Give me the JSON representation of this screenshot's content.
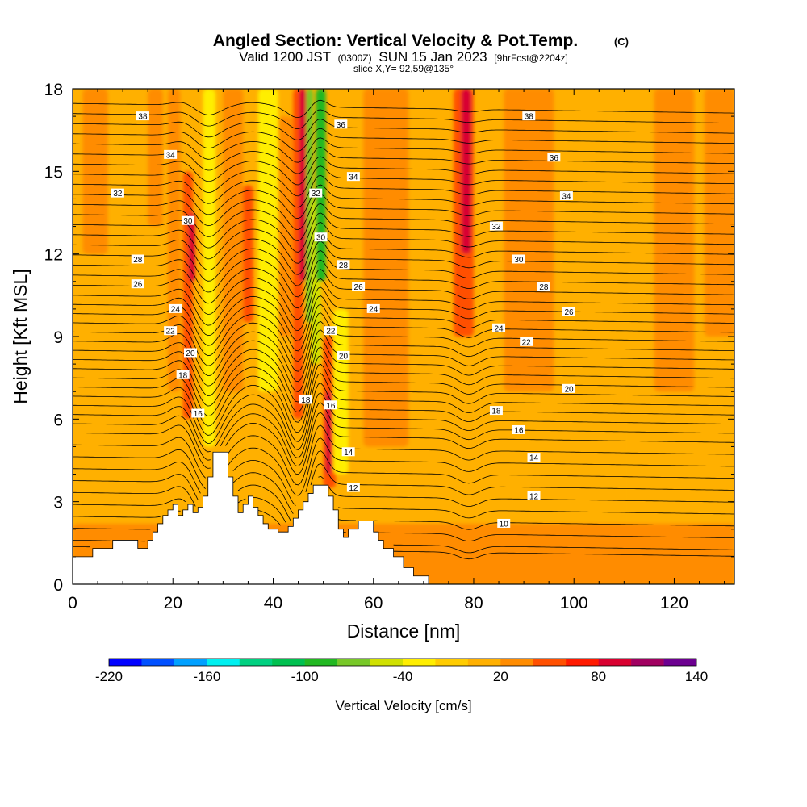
{
  "chart_data": {
    "type": "heatmap",
    "title": "Angled Section: Vertical Velocity & Pot.Temp.",
    "title_units": "(C)",
    "subtitle": {
      "valid": "Valid 1200 JST",
      "utc": "(0300Z)",
      "date": "SUN 15 Jan 2023",
      "forecast": "[9hrFcst@2204z]"
    },
    "slice_info": "slice X,Y= 92,59@135°",
    "xlabel": "Distance [nm]",
    "ylabel": "Height [Kft MSL]",
    "xlim": [
      0,
      132
    ],
    "ylim": [
      0,
      18
    ],
    "x_ticks": [
      0,
      20,
      40,
      60,
      80,
      100,
      120
    ],
    "y_ticks": [
      0,
      3,
      6,
      9,
      12,
      15,
      18
    ],
    "terrain": [
      [
        0,
        1.0
      ],
      [
        4,
        1.0
      ],
      [
        4,
        1.3
      ],
      [
        8,
        1.3
      ],
      [
        8,
        1.6
      ],
      [
        13,
        1.6
      ],
      [
        13,
        1.3
      ],
      [
        15,
        1.3
      ],
      [
        15,
        1.6
      ],
      [
        16,
        1.6
      ],
      [
        16,
        1.9
      ],
      [
        17,
        1.9
      ],
      [
        17,
        2.2
      ],
      [
        18,
        2.2
      ],
      [
        18,
        2.5
      ],
      [
        19,
        2.5
      ],
      [
        19,
        2.7
      ],
      [
        20,
        2.7
      ],
      [
        20,
        2.9
      ],
      [
        21,
        2.9
      ],
      [
        21,
        2.5
      ],
      [
        22,
        2.5
      ],
      [
        22,
        2.7
      ],
      [
        23,
        2.7
      ],
      [
        23,
        2.9
      ],
      [
        24,
        2.9
      ],
      [
        24,
        2.6
      ],
      [
        25,
        2.6
      ],
      [
        25,
        2.8
      ],
      [
        26,
        2.8
      ],
      [
        26,
        3.2
      ],
      [
        27,
        3.2
      ],
      [
        27,
        3.9
      ],
      [
        28,
        3.9
      ],
      [
        28,
        4.8
      ],
      [
        31,
        4.8
      ],
      [
        31,
        3.9
      ],
      [
        32,
        3.9
      ],
      [
        32,
        3.2
      ],
      [
        33,
        3.2
      ],
      [
        33,
        2.6
      ],
      [
        34,
        2.6
      ],
      [
        34,
        2.9
      ],
      [
        35,
        2.9
      ],
      [
        35,
        3.2
      ],
      [
        36,
        3.2
      ],
      [
        36,
        2.8
      ],
      [
        37,
        2.8
      ],
      [
        37,
        2.5
      ],
      [
        38,
        2.5
      ],
      [
        38,
        2.2
      ],
      [
        39,
        2.2
      ],
      [
        39,
        2.0
      ],
      [
        41,
        2.0
      ],
      [
        41,
        1.9
      ],
      [
        43,
        1.9
      ],
      [
        43,
        2.1
      ],
      [
        44,
        2.1
      ],
      [
        44,
        2.4
      ],
      [
        45,
        2.4
      ],
      [
        45,
        2.7
      ],
      [
        46,
        2.7
      ],
      [
        46,
        3.0
      ],
      [
        47,
        3.0
      ],
      [
        47,
        3.3
      ],
      [
        48,
        3.3
      ],
      [
        48,
        3.6
      ],
      [
        51,
        3.6
      ],
      [
        51,
        3.2
      ],
      [
        52,
        3.2
      ],
      [
        52,
        2.7
      ],
      [
        53,
        2.7
      ],
      [
        53,
        2.0
      ],
      [
        54,
        2.0
      ],
      [
        54,
        1.7
      ],
      [
        55,
        1.7
      ],
      [
        55,
        2.0
      ],
      [
        57,
        2.0
      ],
      [
        57,
        2.3
      ],
      [
        60,
        2.3
      ],
      [
        60,
        1.9
      ],
      [
        61,
        1.9
      ],
      [
        61,
        1.6
      ],
      [
        62,
        1.6
      ],
      [
        62,
        1.3
      ],
      [
        64,
        1.3
      ],
      [
        64,
        1.0
      ],
      [
        66,
        1.0
      ],
      [
        66,
        0.6
      ],
      [
        68,
        0.6
      ],
      [
        68,
        0.3
      ],
      [
        71,
        0.3
      ],
      [
        71,
        0.0
      ],
      [
        132,
        0.0
      ]
    ],
    "vertical_velocity_zones": [
      {
        "x": [
          2,
          7
        ],
        "y": [
          12,
          18
        ],
        "value": 30
      },
      {
        "x": [
          15,
          18
        ],
        "y": [
          13,
          18
        ],
        "value": 30
      },
      {
        "x": [
          19,
          21.5
        ],
        "y": [
          7,
          18
        ],
        "value": 38
      },
      {
        "x": [
          22,
          24
        ],
        "y": [
          6,
          15
        ],
        "value": 58
      },
      {
        "x": [
          23.2,
          24.4
        ],
        "y": [
          11,
          13.5
        ],
        "value": 82
      },
      {
        "x": [
          26,
          28.5
        ],
        "y": [
          5,
          18
        ],
        "value": -35
      },
      {
        "x": [
          30,
          34
        ],
        "y": [
          7,
          18
        ],
        "value": 30
      },
      {
        "x": [
          34,
          36
        ],
        "y": [
          9.5,
          14.5
        ],
        "value": 55
      },
      {
        "x": [
          37,
          41
        ],
        "y": [
          7,
          18
        ],
        "value": -25
      },
      {
        "x": [
          41,
          44
        ],
        "y": [
          9,
          17
        ],
        "value": 22
      },
      {
        "x": [
          44,
          46
        ],
        "y": [
          6,
          18
        ],
        "value": 55
      },
      {
        "x": [
          45.2,
          46.6
        ],
        "y": [
          11,
          18
        ],
        "value": 82
      },
      {
        "x": [
          46.6,
          48
        ],
        "y": [
          9.5,
          18
        ],
        "value": -75
      },
      {
        "x": [
          47.5,
          49.5
        ],
        "y": [
          8,
          14
        ],
        "value": -55
      },
      {
        "x": [
          48.5,
          50.5
        ],
        "y": [
          11,
          18
        ],
        "value": -95
      },
      {
        "x": [
          50,
          52.5
        ],
        "y": [
          3.5,
          9
        ],
        "value": 55
      },
      {
        "x": [
          50.5,
          51.6
        ],
        "y": [
          4,
          7
        ],
        "value": 80
      },
      {
        "x": [
          52,
          55
        ],
        "y": [
          4,
          10
        ],
        "value": -30
      },
      {
        "x": [
          58,
          67
        ],
        "y": [
          5,
          18
        ],
        "value": 22
      },
      {
        "x": [
          76,
          80
        ],
        "y": [
          9,
          18
        ],
        "value": 50
      },
      {
        "x": [
          77.5,
          79.5
        ],
        "y": [
          12,
          18
        ],
        "value": 82
      },
      {
        "x": [
          86,
          96
        ],
        "y": [
          7,
          18
        ],
        "value": 22
      },
      {
        "x": [
          116,
          124
        ],
        "y": [
          7,
          18
        ],
        "value": 20
      },
      {
        "x": [
          126,
          132
        ],
        "y": [
          9,
          18
        ],
        "value": 22
      },
      {
        "x": [
          104,
          111
        ],
        "y": [
          2,
          8
        ],
        "value": 15
      },
      {
        "x": [
          118,
          128
        ],
        "y": [
          2.5,
          6
        ],
        "value": 12
      },
      {
        "x": [
          0,
          132
        ],
        "y": [
          0,
          2.2
        ],
        "value": 28
      }
    ],
    "pot_temp_contours": {
      "levels": [
        10,
        12,
        14,
        16,
        18,
        20,
        22,
        24,
        26,
        28,
        30,
        32,
        34,
        36,
        38
      ],
      "labels": [
        {
          "text": "38",
          "x": 14,
          "y": 17.0
        },
        {
          "text": "34",
          "x": 19.5,
          "y": 15.6
        },
        {
          "text": "32",
          "x": 9,
          "y": 14.2
        },
        {
          "text": "30",
          "x": 23,
          "y": 13.2
        },
        {
          "text": "28",
          "x": 13,
          "y": 11.8
        },
        {
          "text": "26",
          "x": 13,
          "y": 10.9
        },
        {
          "text": "24",
          "x": 20.5,
          "y": 10.0
        },
        {
          "text": "22",
          "x": 19.5,
          "y": 9.2
        },
        {
          "text": "20",
          "x": 23.5,
          "y": 8.4
        },
        {
          "text": "18",
          "x": 22,
          "y": 7.6
        },
        {
          "text": "16",
          "x": 25,
          "y": 6.2
        },
        {
          "text": "36",
          "x": 53.5,
          "y": 16.7
        },
        {
          "text": "34",
          "x": 56,
          "y": 14.8
        },
        {
          "text": "32",
          "x": 48.5,
          "y": 14.2
        },
        {
          "text": "30",
          "x": 49.5,
          "y": 12.6
        },
        {
          "text": "28",
          "x": 54,
          "y": 11.6
        },
        {
          "text": "26",
          "x": 57,
          "y": 10.8
        },
        {
          "text": "24",
          "x": 60,
          "y": 10.0
        },
        {
          "text": "22",
          "x": 51.5,
          "y": 9.2
        },
        {
          "text": "20",
          "x": 54,
          "y": 8.3
        },
        {
          "text": "18",
          "x": 46.5,
          "y": 6.7
        },
        {
          "text": "16",
          "x": 51.5,
          "y": 6.5
        },
        {
          "text": "14",
          "x": 55,
          "y": 4.8
        },
        {
          "text": "12",
          "x": 56,
          "y": 3.5
        },
        {
          "text": "10",
          "x": 86,
          "y": 2.2
        },
        {
          "text": "12",
          "x": 92,
          "y": 3.2
        },
        {
          "text": "14",
          "x": 92,
          "y": 4.6
        },
        {
          "text": "16",
          "x": 89,
          "y": 5.6
        },
        {
          "text": "18",
          "x": 84.5,
          "y": 6.3
        },
        {
          "text": "20",
          "x": 99,
          "y": 7.1
        },
        {
          "text": "22",
          "x": 90.5,
          "y": 8.8
        },
        {
          "text": "24",
          "x": 85,
          "y": 9.3
        },
        {
          "text": "26",
          "x": 99,
          "y": 9.9
        },
        {
          "text": "28",
          "x": 94,
          "y": 10.8
        },
        {
          "text": "30",
          "x": 89,
          "y": 11.8
        },
        {
          "text": "32",
          "x": 84.5,
          "y": 13.0
        },
        {
          "text": "34",
          "x": 98.5,
          "y": 14.1
        },
        {
          "text": "36",
          "x": 96,
          "y": 15.5
        },
        {
          "text": "38",
          "x": 91,
          "y": 17.0
        }
      ]
    },
    "colorbar": {
      "label": "Vertical Velocity [cm/s]",
      "tick_labels": [
        "-220",
        "-160",
        "-100",
        "-40",
        "20",
        "80",
        "140"
      ],
      "tick_values": [
        -220,
        -160,
        -100,
        -40,
        20,
        80,
        140
      ],
      "bounds": [
        -220,
        -200,
        -180,
        -160,
        -140,
        -120,
        -100,
        -80,
        -60,
        -40,
        -20,
        0,
        20,
        40,
        60,
        80,
        100,
        120,
        140
      ],
      "colors": [
        "#0000ff",
        "#0050ff",
        "#00a0ff",
        "#00f0f0",
        "#00d080",
        "#00c050",
        "#22b822",
        "#78c828",
        "#d0e000",
        "#ffee00",
        "#ffcc00",
        "#ffb000",
        "#ff8c00",
        "#ff5000",
        "#ff1a00",
        "#d80030",
        "#a00060",
        "#6c0090"
      ]
    }
  }
}
